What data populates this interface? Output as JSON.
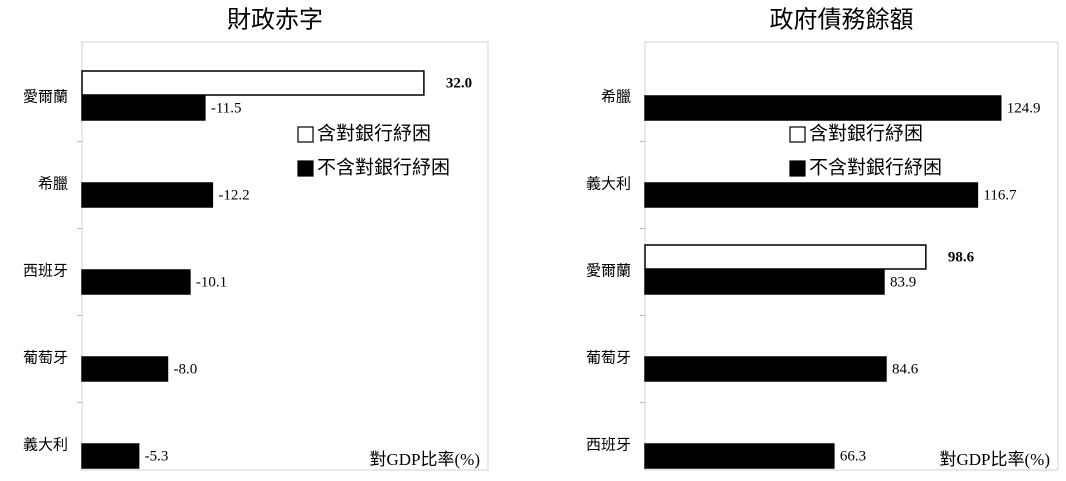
{
  "chart_data": [
    {
      "type": "bar",
      "orientation": "horizontal",
      "title": "財政赤字",
      "categories": [
        "愛爾蘭",
        "希臘",
        "西班牙",
        "葡萄牙",
        "義大利"
      ],
      "series": [
        {
          "name": "含對銀行紓困",
          "color": "#ffffff",
          "values": [
            32.0,
            null,
            null,
            null,
            null
          ],
          "value_labels": [
            "32.0",
            null,
            null,
            null,
            null
          ]
        },
        {
          "name": "不含對銀行紓困",
          "color": "#000000",
          "values": [
            -11.5,
            -12.2,
            -10.1,
            -8.0,
            -5.3
          ],
          "value_labels": [
            "-11.5",
            "-12.2",
            "-10.1",
            "-8.0",
            "-5.3"
          ]
        }
      ],
      "xlim": [
        0,
        38
      ],
      "annotation": "對GDP比率(%)",
      "legend": "center"
    },
    {
      "type": "bar",
      "orientation": "horizontal",
      "title": "政府債務餘額",
      "categories": [
        "希臘",
        "義大利",
        "愛爾蘭",
        "葡萄牙",
        "西班牙"
      ],
      "series": [
        {
          "name": "含對銀行紓困",
          "color": "#ffffff",
          "values": [
            null,
            null,
            98.6,
            null,
            null
          ],
          "value_labels": [
            null,
            null,
            "98.6",
            null,
            null
          ]
        },
        {
          "name": "不含對銀行紓困",
          "color": "#000000",
          "values": [
            124.9,
            116.7,
            83.9,
            84.6,
            66.3
          ],
          "value_labels": [
            "124.9",
            "116.7",
            "83.9",
            "84.6",
            "66.3"
          ]
        }
      ],
      "xlim": [
        0,
        145
      ],
      "annotation": "對GDP比率(%)",
      "legend": "center"
    }
  ]
}
